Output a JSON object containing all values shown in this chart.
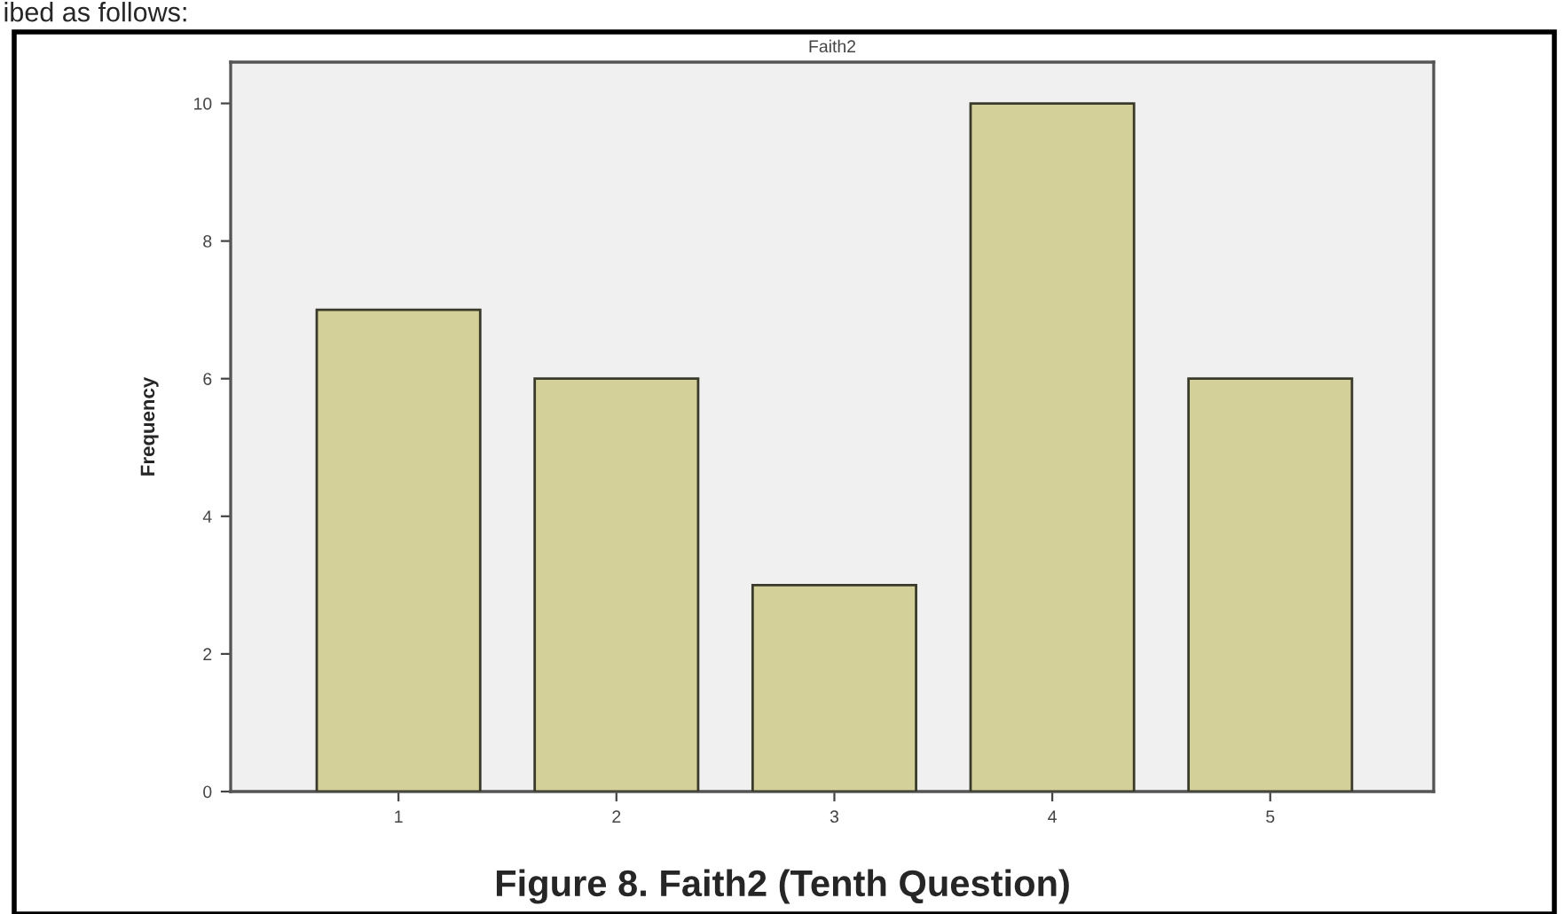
{
  "chart_data": {
    "type": "bar",
    "title": "Faith2",
    "ylabel": "Frequency",
    "categories": [
      "1",
      "2",
      "3",
      "4",
      "5"
    ],
    "values": [
      7,
      6,
      3,
      10,
      6
    ],
    "color": "#d4d09a",
    "ylim": [
      0,
      10.6
    ],
    "yticks": [
      0,
      2,
      4,
      6,
      8,
      10
    ],
    "grid": false,
    "legend": false,
    "annotations": [
      "ibed as follows:",
      "Figure 8. Faith2 (Tenth Question)"
    ]
  }
}
